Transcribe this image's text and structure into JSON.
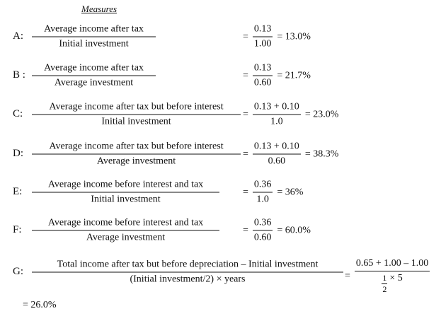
{
  "heading": "Measures",
  "rows": [
    {
      "label": "A:",
      "numerator": "Average income after tax",
      "denominator": "Initial investment",
      "sign": "=",
      "value_numerator": "0.13",
      "value_denominator": "1.00",
      "result": "= 13.0%"
    },
    {
      "label": "B :",
      "numerator": "Average income after tax",
      "denominator": "Average investment",
      "sign": "=",
      "value_numerator": "0.13",
      "value_denominator": "0.60",
      "result": "= 21.7%"
    },
    {
      "label": "C:",
      "numerator": "Average income after tax but before interest",
      "denominator": "Initial investment",
      "sign": "=",
      "value_numerator": "0.13 + 0.10",
      "value_denominator": "1.0",
      "result": "= 23.0%"
    },
    {
      "label": "D:",
      "numerator": "Average income after tax but before interest",
      "denominator": "Average investment",
      "sign": "=",
      "value_numerator": "0.13 + 0.10",
      "value_denominator": "0.60",
      "result": "= 38.3%"
    },
    {
      "label": "E:",
      "numerator": "Average income before interest and tax",
      "denominator": "Initial investment",
      "sign": "=",
      "value_numerator": "0.36",
      "value_denominator": "1.0",
      "result": "= 36%"
    },
    {
      "label": "F:",
      "numerator": "Average income before interest and tax",
      "denominator": "Average investment",
      "sign": "=",
      "value_numerator": "0.36",
      "value_denominator": "0.60",
      "result": "= 60.0%"
    }
  ],
  "row_g": {
    "label": "G:",
    "numerator": "Total income after tax but before depreciation – Initial investment",
    "denominator": "(Initial investment/2) × years",
    "sign": "=",
    "value_numerator": "0.65 + 1.00 – 1.00",
    "value_denominator": {
      "fraction_numerator": "1",
      "fraction_denominator": "2",
      "multiplier": "× 5"
    },
    "result": "= 26.0%"
  }
}
